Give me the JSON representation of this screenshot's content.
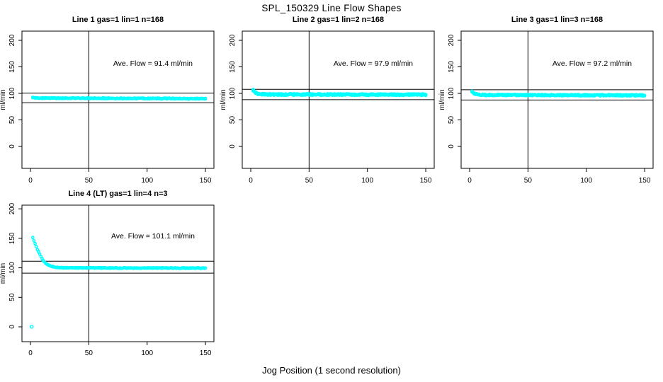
{
  "figure": {
    "title": "SPL_150329  Line Flow Shapes",
    "xlabel": "Jog Position (1 second resolution)"
  },
  "colors": {
    "points": "#00ffff",
    "axis": "#000000",
    "background": "#ffffff",
    "text": "#000000"
  },
  "chart_data": [
    {
      "type": "scatter",
      "title": "Line 1 gas=1 lin=1 n=168",
      "line": 1,
      "gas": 1,
      "lin": 1,
      "n": 168,
      "ylabel": "ml/min",
      "annotation": "Ave. Flow =  91.4  ml/min",
      "ave_flow_ml_min": 91.4,
      "x_ticks": [
        0,
        50,
        100,
        150
      ],
      "y_ticks": [
        0,
        50,
        100,
        150,
        200
      ],
      "xlim": [
        -7,
        157
      ],
      "ylim": [
        -41,
        217
      ],
      "vline_x": 50,
      "ref_lines": [
        100.5,
        82.3
      ],
      "flat_value": 90.5,
      "x_range": [
        2,
        150
      ],
      "profile": [
        [
          2,
          92.5
        ],
        [
          4,
          91.5
        ],
        [
          8,
          91.0
        ],
        [
          60,
          90.8
        ],
        [
          150,
          90.0
        ]
      ],
      "outliers": [],
      "noise": 0.9,
      "points_per_x": 2,
      "annotation_pos": [
        105,
        152
      ]
    },
    {
      "type": "scatter",
      "title": "Line 2 gas=1 lin=2 n=168",
      "line": 2,
      "gas": 1,
      "lin": 2,
      "n": 168,
      "ylabel": "ml/min",
      "annotation": "Ave. Flow =  97.9  ml/min",
      "ave_flow_ml_min": 97.9,
      "x_ticks": [
        0,
        50,
        100,
        150
      ],
      "y_ticks": [
        0,
        50,
        100,
        150,
        200
      ],
      "xlim": [
        -7,
        157
      ],
      "ylim": [
        -41,
        217
      ],
      "vline_x": 50,
      "ref_lines": [
        107.7,
        88.1
      ],
      "flat_value": 98.0,
      "x_range": [
        2,
        150
      ],
      "profile": [
        [
          2,
          106.0
        ],
        [
          3,
          103.5
        ],
        [
          4,
          101.5
        ],
        [
          6,
          99.5
        ],
        [
          9,
          98.5
        ],
        [
          15,
          98.0
        ],
        [
          150,
          97.5
        ]
      ],
      "outliers": [],
      "noise": 1.6,
      "points_per_x": 3,
      "annotation_pos": [
        105,
        152
      ]
    },
    {
      "type": "scatter",
      "title": "Line 3 gas=1 lin=3 n=168",
      "line": 3,
      "gas": 1,
      "lin": 3,
      "n": 168,
      "ylabel": "ml/min",
      "annotation": "Ave. Flow =  97.2  ml/min",
      "ave_flow_ml_min": 97.2,
      "x_ticks": [
        0,
        50,
        100,
        150
      ],
      "y_ticks": [
        0,
        50,
        100,
        150,
        200
      ],
      "xlim": [
        -7,
        157
      ],
      "ylim": [
        -41,
        217
      ],
      "vline_x": 50,
      "ref_lines": [
        106.9,
        87.5
      ],
      "flat_value": 97.0,
      "x_range": [
        2,
        150
      ],
      "profile": [
        [
          2,
          103.0
        ],
        [
          3,
          101.0
        ],
        [
          5,
          98.5
        ],
        [
          8,
          97.5
        ],
        [
          15,
          97.0
        ],
        [
          150,
          96.3
        ]
      ],
      "outliers": [],
      "noise": 1.4,
      "points_per_x": 3,
      "annotation_pos": [
        105,
        152
      ]
    },
    {
      "type": "scatter",
      "title": "Line 4 (LT) gas=1 lin=4 n=3",
      "line": 4,
      "line_note": "LT",
      "gas": 1,
      "lin": 4,
      "n": 3,
      "ylabel": "ml/min",
      "annotation": "Ave. Flow =  101.1  ml/min",
      "ave_flow_ml_min": 101.1,
      "x_ticks": [
        0,
        50,
        100,
        150
      ],
      "y_ticks": [
        0,
        50,
        100,
        150,
        200
      ],
      "xlim": [
        -7,
        157
      ],
      "ylim": [
        -25,
        206
      ],
      "vline_x": 50,
      "ref_lines": [
        111.2,
        91.0
      ],
      "flat_value": 100.0,
      "x_range": [
        2,
        150
      ],
      "profile": [
        [
          2,
          151
        ],
        [
          3,
          146
        ],
        [
          4,
          141
        ],
        [
          5,
          136
        ],
        [
          6,
          131
        ],
        [
          7,
          127
        ],
        [
          8,
          123
        ],
        [
          9,
          119
        ],
        [
          10,
          115.5
        ],
        [
          11,
          112.5
        ],
        [
          12,
          110
        ],
        [
          13,
          108
        ],
        [
          14,
          106.3
        ],
        [
          15,
          105
        ],
        [
          16,
          104
        ],
        [
          17,
          103.2
        ],
        [
          18,
          102.5
        ],
        [
          20,
          101.6
        ],
        [
          23,
          100.8
        ],
        [
          26,
          100.3
        ],
        [
          30,
          100
        ],
        [
          60,
          99.8
        ],
        [
          150,
          99.5
        ]
      ],
      "outliers": [
        [
          1,
          0
        ]
      ],
      "noise": 0.7,
      "points_per_x": 2,
      "annotation_pos": [
        105,
        150
      ]
    }
  ]
}
